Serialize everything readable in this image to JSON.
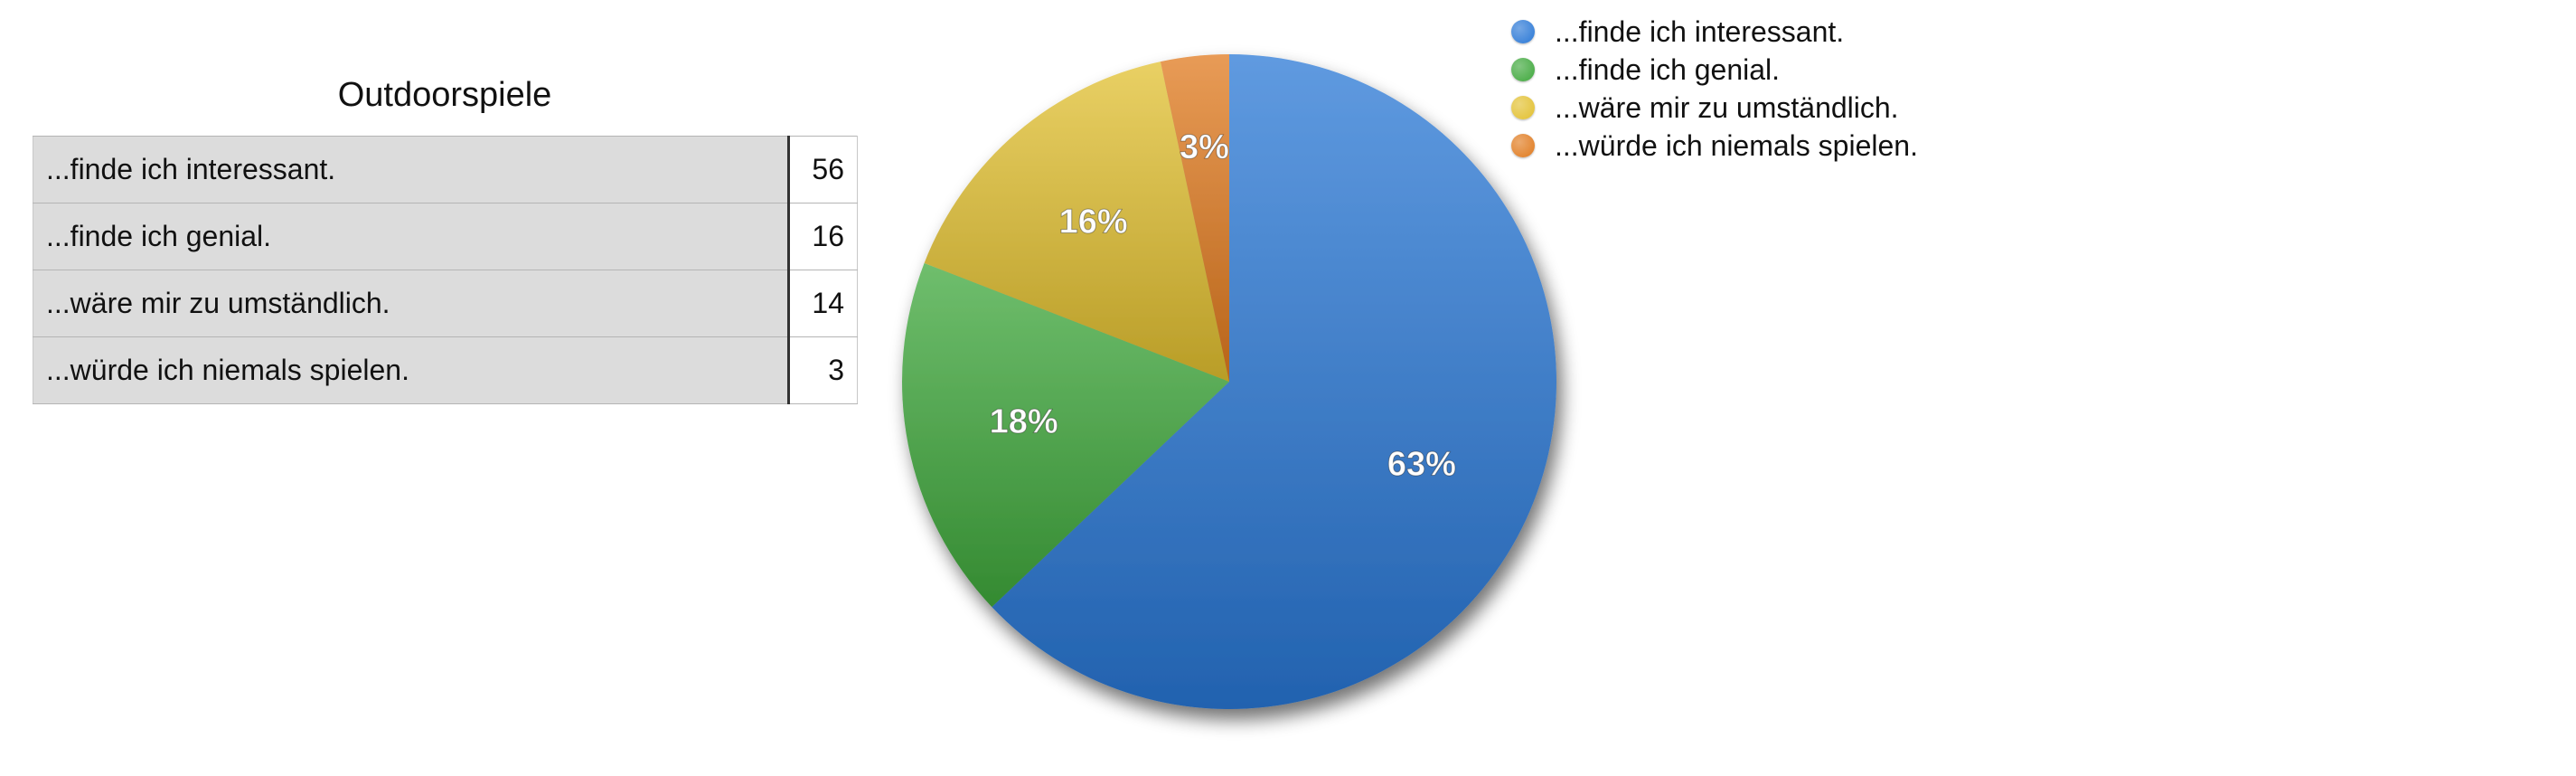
{
  "table": {
    "title": "Outdoorspiele",
    "rows": [
      {
        "label": "...finde ich interessant.",
        "value": "56"
      },
      {
        "label": "...finde ich genial.",
        "value": "16"
      },
      {
        "label": "...wäre mir zu umständlich.",
        "value": "14"
      },
      {
        "label": "...würde ich niemals spielen.",
        "value": "3"
      }
    ]
  },
  "chart_data": {
    "type": "pie",
    "title": "",
    "legend_position": "top-right",
    "categories": [
      "...finde ich interessant.",
      "...finde ich genial.",
      "...wäre mir zu umständlich.",
      "...würde ich niemals spielen."
    ],
    "values": [
      56,
      16,
      14,
      3
    ],
    "labels": [
      "63%",
      "18%",
      "16%",
      "3%"
    ],
    "colors": [
      "#2a78d6",
      "#3fa83c",
      "#e2c030",
      "#e07a1e"
    ],
    "start": "12 o'clock",
    "direction": "clockwise"
  }
}
